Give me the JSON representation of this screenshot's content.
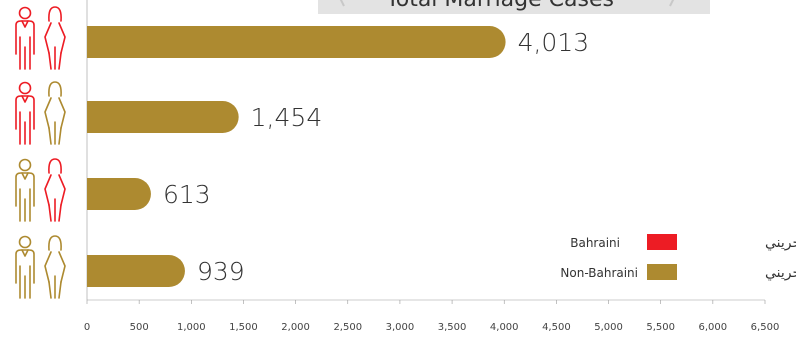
{
  "chart_data": {
    "type": "bar",
    "orientation": "horizontal",
    "title": "Total Marriage Cases",
    "categories": [
      {
        "husband": "Bahraini",
        "wife": "Bahraini"
      },
      {
        "husband": "Bahraini",
        "wife": "Non-Bahraini"
      },
      {
        "husband": "Non-Bahraini",
        "wife": "Bahraini"
      },
      {
        "husband": "Non-Bahraini",
        "wife": "Non-Bahraini"
      }
    ],
    "values": [
      4013,
      1454,
      613,
      939
    ],
    "value_labels": [
      "4,013",
      "1,454",
      "613",
      "939"
    ],
    "xlim": [
      0,
      6500
    ],
    "x_ticks": [
      0,
      500,
      1000,
      1500,
      2000,
      2500,
      3000,
      3500,
      4000,
      4500,
      5000,
      5500,
      6000,
      6500
    ],
    "x_tick_labels": [
      "0",
      "500",
      "1,000",
      "1,500",
      "2,000",
      "2,500",
      "3,000",
      "3,500",
      "4,000",
      "4,500",
      "5,000",
      "5,500",
      "6,000",
      "6,500"
    ],
    "grid": false,
    "legend": {
      "position": "bottom-right",
      "entries": [
        {
          "label_en": "Bahraini",
          "label_ar": "بحريني",
          "color": "#ed1c24"
        },
        {
          "label_en": "Non-Bahraini",
          "label_ar": "غير بحريني",
          "color": "#ad8a30"
        }
      ]
    },
    "colors": {
      "bar": "#ad8a30",
      "bahraini": "#ed1c24",
      "non_bahraini": "#ad8a30"
    }
  }
}
